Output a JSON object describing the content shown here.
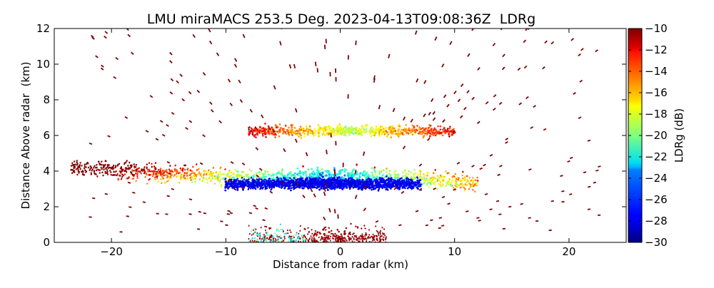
{
  "chart_data": {
    "type": "heatmap",
    "title": "LMU miraMACS 253.5 Deg. 2023-04-13T09:08:36Z  LDRg",
    "xlabel": "Distance from radar (km)",
    "ylabel": "Distance Above radar  (km)",
    "xlim": [
      -25,
      25
    ],
    "ylim": [
      0,
      12
    ],
    "xticks": [
      -20,
      -10,
      0,
      10,
      20
    ],
    "yticks": [
      0,
      2,
      4,
      6,
      8,
      10,
      12
    ],
    "colorbar": {
      "label": "LDRg (dB)",
      "colormap": "jet",
      "range": [
        -30,
        -10
      ],
      "ticks": [
        -30,
        -28,
        -26,
        -24,
        -22,
        -20,
        -18,
        -16,
        -14,
        -12,
        -10
      ]
    },
    "regions": [
      {
        "name": "lower cloud layer",
        "x_range": [
          -23.5,
          12
        ],
        "y_range": [
          2.5,
          4.9
        ],
        "ldr_db": [
          -30,
          -10
        ]
      },
      {
        "name": "dense low-LDR core",
        "x_range": [
          -10,
          7
        ],
        "y_range": [
          2.6,
          4.1
        ],
        "ldr_db": [
          -30,
          -26
        ]
      },
      {
        "name": "mid-level layer",
        "x_range": [
          -8,
          10
        ],
        "y_range": [
          5.5,
          6.9
        ],
        "ldr_db": [
          -20,
          -10
        ]
      },
      {
        "name": "near-surface returns",
        "x_range": [
          -8,
          4
        ],
        "y_range": [
          0,
          2
        ],
        "ldr_db": [
          -14,
          -10
        ]
      },
      {
        "name": "sparse high returns",
        "x_range": [
          -22,
          23
        ],
        "y_range": [
          0.5,
          12
        ],
        "ldr_db": [
          -11,
          -10
        ]
      }
    ]
  }
}
